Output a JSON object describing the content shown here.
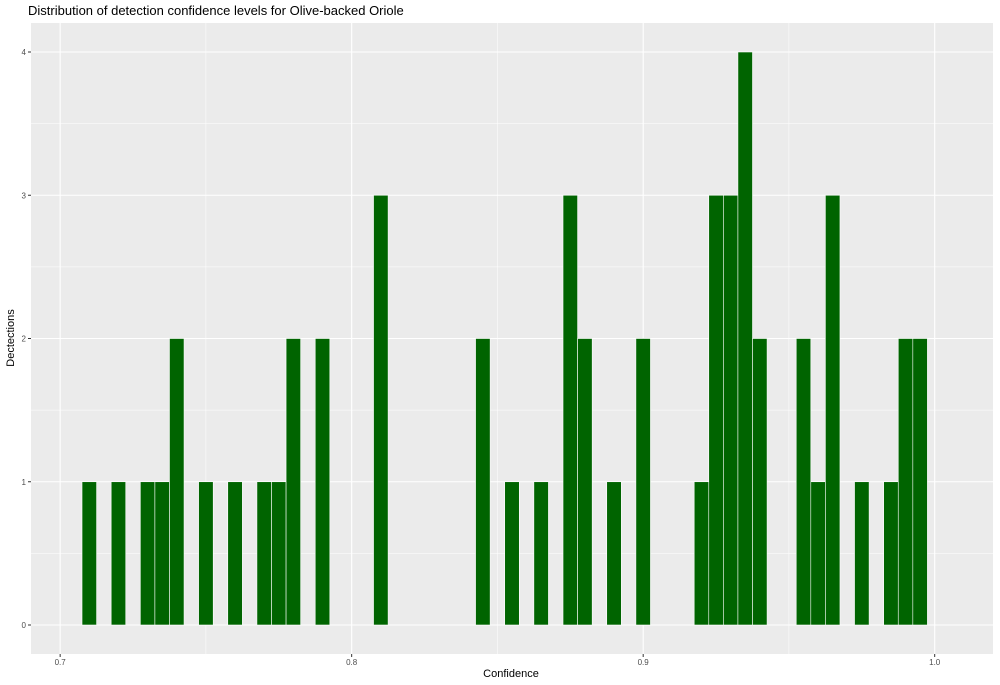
{
  "chart_data": {
    "type": "bar",
    "title": "Distribution of detection confidence levels for Olive-backed Oriole",
    "xlabel": "Confidence",
    "ylabel": "Dectections",
    "xlim": [
      0.69,
      1.02
    ],
    "ylim": [
      0,
      4
    ],
    "bin_width": 0.005,
    "x_ticks": [
      "0.7",
      "0.8",
      "0.9",
      "1.0"
    ],
    "y_ticks": [
      "0",
      "1",
      "2",
      "3",
      "4"
    ],
    "grid": true,
    "bar_color": "#006400",
    "panel_background": "#ebebeb",
    "grid_color": "#ffffff",
    "bins": [
      {
        "x": 0.71,
        "count": 1
      },
      {
        "x": 0.72,
        "count": 1
      },
      {
        "x": 0.73,
        "count": 1
      },
      {
        "x": 0.735,
        "count": 1
      },
      {
        "x": 0.74,
        "count": 2
      },
      {
        "x": 0.75,
        "count": 1
      },
      {
        "x": 0.76,
        "count": 1
      },
      {
        "x": 0.77,
        "count": 1
      },
      {
        "x": 0.775,
        "count": 1
      },
      {
        "x": 0.78,
        "count": 2
      },
      {
        "x": 0.79,
        "count": 2
      },
      {
        "x": 0.81,
        "count": 3
      },
      {
        "x": 0.845,
        "count": 2
      },
      {
        "x": 0.855,
        "count": 1
      },
      {
        "x": 0.865,
        "count": 1
      },
      {
        "x": 0.875,
        "count": 3
      },
      {
        "x": 0.88,
        "count": 2
      },
      {
        "x": 0.89,
        "count": 1
      },
      {
        "x": 0.9,
        "count": 2
      },
      {
        "x": 0.92,
        "count": 1
      },
      {
        "x": 0.925,
        "count": 3
      },
      {
        "x": 0.93,
        "count": 3
      },
      {
        "x": 0.935,
        "count": 4
      },
      {
        "x": 0.94,
        "count": 2
      },
      {
        "x": 0.955,
        "count": 2
      },
      {
        "x": 0.96,
        "count": 1
      },
      {
        "x": 0.965,
        "count": 3
      },
      {
        "x": 0.975,
        "count": 1
      },
      {
        "x": 0.985,
        "count": 1
      },
      {
        "x": 0.99,
        "count": 2
      },
      {
        "x": 0.995,
        "count": 2
      }
    ]
  }
}
